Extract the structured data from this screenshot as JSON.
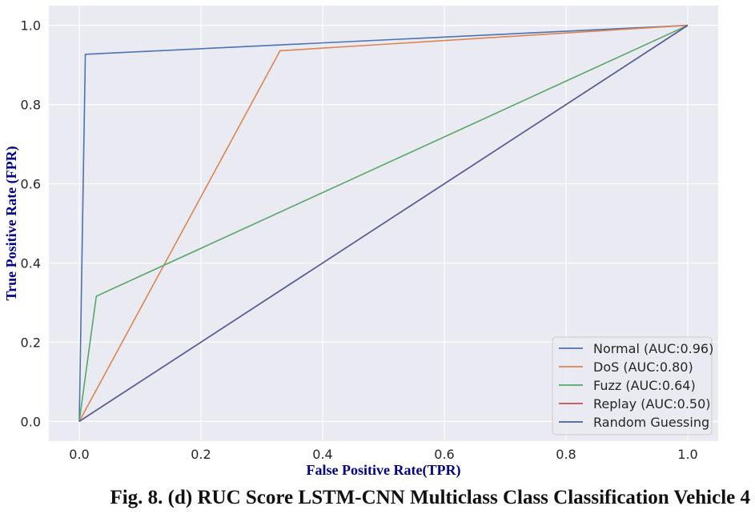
{
  "caption": "Fig. 8. (d) RUC Score LSTM-CNN Multiclass Class Classification Vehicle 4",
  "chart_data": {
    "type": "line",
    "title": "",
    "xlabel": "False Positive Rate(TPR)",
    "ylabel": "True Positive Rate (FPR)",
    "xlim": [
      -0.05,
      1.05
    ],
    "ylim": [
      -0.05,
      1.05
    ],
    "xticks": [
      "0.0",
      "0.2",
      "0.4",
      "0.6",
      "0.8",
      "1.0"
    ],
    "yticks": [
      "0.0",
      "0.2",
      "0.4",
      "0.6",
      "0.8",
      "1.0"
    ],
    "grid": true,
    "legend_position": "lower-right",
    "series": [
      {
        "name": "Normal (AUC:0.96)",
        "color": "#4c72b0",
        "x": [
          0.0,
          0.01,
          1.0
        ],
        "y": [
          0.0,
          0.927,
          1.0
        ]
      },
      {
        "name": "DoS (AUC:0.80)",
        "color": "#dd8452",
        "x": [
          0.0,
          0.33,
          1.0
        ],
        "y": [
          0.0,
          0.936,
          1.0
        ]
      },
      {
        "name": "Fuzz (AUC:0.64)",
        "color": "#55a868",
        "x": [
          0.0,
          0.028,
          1.0
        ],
        "y": [
          0.0,
          0.316,
          1.0
        ]
      },
      {
        "name": "Replay (AUC:0.50)",
        "color": "#c44e52",
        "x": [
          0.0,
          1.0
        ],
        "y": [
          0.0,
          1.0
        ]
      },
      {
        "name": "Random Guessing",
        "color": "#4c5f9c",
        "x": [
          0.0,
          1.0
        ],
        "y": [
          0.0,
          1.0
        ]
      }
    ]
  }
}
